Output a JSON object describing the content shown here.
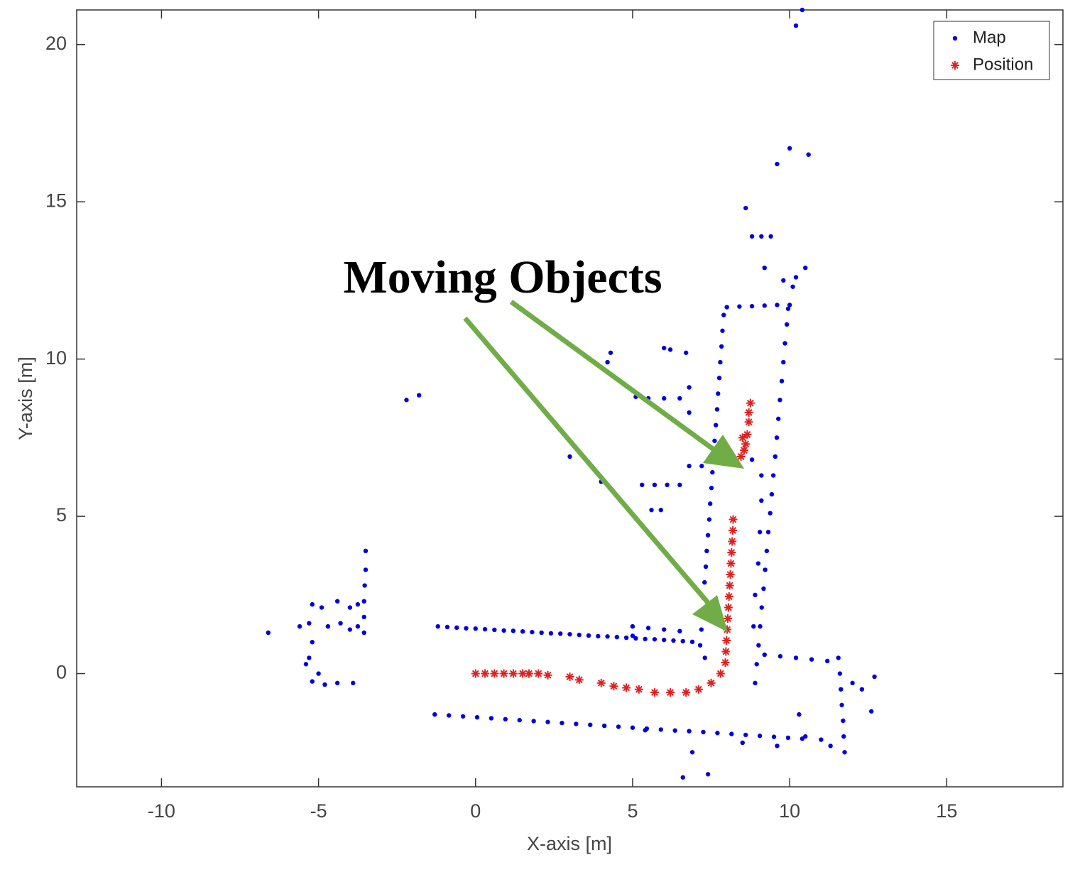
{
  "chart_data": {
    "type": "scatter",
    "xlabel": "X-axis [m]",
    "ylabel": "Y-axis [m]",
    "xlim": [
      -12.7,
      18.7
    ],
    "ylim": [
      -3.6,
      21.1
    ],
    "xticks": [
      -10,
      -5,
      0,
      5,
      10,
      15
    ],
    "yticks": [
      0,
      5,
      10,
      15,
      20
    ],
    "grid": false,
    "legend": "upper right",
    "annotation": "Moving Objects",
    "series": [
      {
        "name": "Map",
        "color": "#0000e0",
        "marker": ".",
        "x": [
          -1.2,
          -0.9,
          -0.6,
          -0.3,
          0,
          0.3,
          0.6,
          0.9,
          1.2,
          1.5,
          1.8,
          2.1,
          2.4,
          2.7,
          3.0,
          3.3,
          3.6,
          3.9,
          4.2,
          4.5,
          4.8,
          5.1,
          5.4,
          5.7,
          6.0,
          6.3,
          6.6,
          6.9,
          5.0,
          5.5,
          6.0,
          6.5,
          5.0,
          -1.3,
          -0.85,
          -0.4,
          0.05,
          0.5,
          0.95,
          1.4,
          1.85,
          2.3,
          2.75,
          3.2,
          3.65,
          4.1,
          4.55,
          5.0,
          5.45,
          5.9,
          6.35,
          6.8,
          7.25,
          7.7,
          8.15,
          8.6,
          9.05,
          9.5,
          9.95,
          10.4,
          7.15,
          7.19,
          7.22,
          7.26,
          7.29,
          7.33,
          7.36,
          7.4,
          7.44,
          7.47,
          7.51,
          7.54,
          7.58,
          7.61,
          7.65,
          7.69,
          7.72,
          7.76,
          7.79,
          7.83,
          7.86,
          7.9,
          8.9,
          8.95,
          9.01,
          9.06,
          9.11,
          9.17,
          9.22,
          9.27,
          9.32,
          9.38,
          9.43,
          9.48,
          9.54,
          9.59,
          9.64,
          9.69,
          9.75,
          9.8,
          9.85,
          9.91,
          9.95,
          8.85,
          8.9,
          9.0,
          9.05,
          9.1,
          9.1,
          8.8,
          8.0,
          8.4,
          8.8,
          9.2,
          9.6,
          10.0,
          11.55,
          11.6,
          11.63,
          11.66,
          11.7,
          11.72,
          11.75,
          12.0,
          12.3,
          12.6,
          12.7,
          9.2,
          9.7,
          10.2,
          10.7,
          11.2,
          10.5,
          11.0,
          11.3,
          -3.55,
          -3.55,
          -3.55,
          -3.53,
          -3.5,
          -3.5,
          -3.75,
          -3.75,
          -4.0,
          -4.0,
          -4.3,
          -4.4,
          -4.7,
          -4.9,
          -5.2,
          -5.3,
          -5.2,
          -5.3,
          -5.4,
          -5.6,
          -5.0,
          -5.2,
          -4.8,
          -4.4,
          -3.9,
          -6.6,
          -2.2,
          -1.8,
          4.3,
          4.2,
          6.0,
          6.2,
          6.7,
          5.1,
          5.5,
          6.0,
          6.5,
          6.8,
          6.8,
          6.8,
          3.0,
          4.0,
          5.3,
          5.7,
          6.1,
          6.5,
          5.6,
          5.9,
          6.8,
          7.2,
          8.6,
          8.8,
          9.1,
          9.4,
          9.2,
          9.8,
          10.2,
          10.5,
          9.6,
          10.0,
          10.6,
          10.2,
          10.4,
          10.1,
          7.3,
          6.6,
          7.4,
          8.5,
          9.6,
          10.3,
          5.4,
          6.9
        ],
        "y": [
          1.5,
          1.48,
          1.46,
          1.44,
          1.43,
          1.41,
          1.39,
          1.37,
          1.36,
          1.34,
          1.32,
          1.3,
          1.28,
          1.27,
          1.25,
          1.23,
          1.21,
          1.19,
          1.18,
          1.16,
          1.14,
          1.12,
          1.1,
          1.09,
          1.07,
          1.05,
          1.03,
          1.01,
          1.5,
          1.45,
          1.4,
          1.35,
          1.2,
          -1.3,
          -1.33,
          -1.36,
          -1.39,
          -1.42,
          -1.45,
          -1.48,
          -1.51,
          -1.54,
          -1.57,
          -1.6,
          -1.63,
          -1.66,
          -1.69,
          -1.72,
          -1.75,
          -1.78,
          -1.81,
          -1.83,
          -1.86,
          -1.89,
          -1.92,
          -1.95,
          -1.98,
          -2.01,
          -2.04,
          -2.07,
          0.9,
          1.4,
          1.9,
          2.4,
          2.9,
          3.4,
          3.9,
          4.4,
          4.9,
          5.4,
          5.9,
          6.4,
          6.9,
          7.4,
          7.9,
          8.4,
          8.9,
          9.4,
          9.9,
          10.4,
          10.9,
          11.4,
          -0.3,
          0.3,
          0.9,
          1.5,
          2.1,
          2.7,
          3.3,
          3.9,
          4.5,
          5.1,
          5.7,
          6.3,
          6.9,
          7.5,
          8.1,
          8.7,
          9.3,
          9.9,
          10.5,
          11.1,
          11.6,
          1.5,
          2.5,
          3.5,
          4.5,
          5.5,
          6.3,
          6.8,
          11.65,
          11.67,
          11.68,
          11.7,
          11.72,
          11.72,
          0.5,
          0,
          -0.5,
          -1.0,
          -1.5,
          -2.0,
          -2.5,
          -0.3,
          -0.5,
          -1.2,
          -0.1,
          0.6,
          0.55,
          0.5,
          0.45,
          0.4,
          -2.0,
          -2.1,
          -2.3,
          1.3,
          1.8,
          2.3,
          2.8,
          3.3,
          3.9,
          1.5,
          2.2,
          1.4,
          2.1,
          1.6,
          2.3,
          1.5,
          2.1,
          2.2,
          1.6,
          1.0,
          0.5,
          0.3,
          1.5,
          0.0,
          -0.25,
          -0.35,
          -0.3,
          -0.3,
          1.3,
          8.7,
          8.85,
          10.2,
          9.9,
          10.35,
          10.3,
          10.2,
          8.8,
          8.75,
          8.75,
          8.75,
          9.1,
          8.3,
          7.7,
          6.9,
          6.1,
          6.0,
          6.0,
          6.0,
          6.0,
          5.2,
          5.2,
          6.6,
          6.6,
          14.8,
          13.9,
          13.9,
          13.9,
          12.9,
          12.5,
          12.6,
          12.9,
          16.2,
          16.7,
          16.5,
          20.6,
          21.1,
          12.3,
          0.5,
          -3.3,
          -3.2,
          -2.2,
          -2.3,
          -1.3,
          -1.8,
          -2.5
        ]
      },
      {
        "name": "Position",
        "color": "#e02020",
        "marker": "*",
        "x": [
          0,
          0.3,
          0.6,
          0.9,
          1.2,
          1.5,
          1.7,
          2.0,
          2.3,
          3.0,
          3.3,
          4.0,
          4.4,
          4.8,
          5.2,
          5.7,
          6.2,
          6.7,
          7.1,
          7.5,
          7.8,
          7.95,
          7.97,
          7.99,
          8.01,
          8.03,
          8.05,
          8.07,
          8.09,
          8.11,
          8.13,
          8.15,
          8.17,
          8.19,
          8.2,
          8.45,
          8.55,
          8.6,
          8.5,
          8.65,
          8.7,
          8.7,
          8.75
        ],
        "y": [
          0,
          0,
          0,
          0,
          0,
          0,
          0,
          0,
          -0.05,
          -0.1,
          -0.2,
          -0.3,
          -0.4,
          -0.45,
          -0.5,
          -0.6,
          -0.6,
          -0.6,
          -0.5,
          -0.3,
          0,
          0.35,
          0.7,
          1.05,
          1.4,
          1.75,
          2.1,
          2.45,
          2.8,
          3.15,
          3.5,
          3.85,
          4.2,
          4.55,
          4.9,
          6.9,
          7.1,
          7.3,
          7.5,
          7.6,
          8.0,
          8.3,
          8.6
        ]
      }
    ]
  }
}
